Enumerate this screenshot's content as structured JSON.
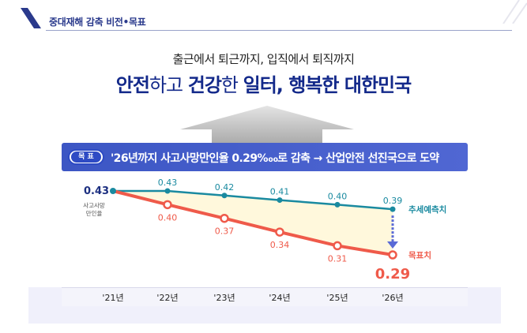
{
  "header": {
    "title": "중대재해 감축 비전•목표"
  },
  "subtitle": "출근에서 퇴근까지, 입직에서 퇴직까지",
  "title_parts": [
    {
      "text": "안전",
      "bold": true
    },
    {
      "text": "하고 ",
      "bold": false
    },
    {
      "text": "건강",
      "bold": true
    },
    {
      "text": "한 ",
      "bold": false
    },
    {
      "text": "일터, 행복한 대한민국",
      "bold": true
    }
  ],
  "banner": {
    "badge": "목 표",
    "text": "'26년까지 사고사망만인율 0.29‱로 감축 → 산업안전 선진국으로 도약"
  },
  "chart_data": {
    "type": "line",
    "categories": [
      "'21년",
      "'22년",
      "'23년",
      "'24년",
      "'25년",
      "'26년"
    ],
    "ylabel": "사고사망\n만인율",
    "start_label": "0.43",
    "target_end_label": "0.29",
    "series": [
      {
        "name": "추세예측치",
        "values": [
          0.43,
          0.43,
          0.42,
          0.41,
          0.4,
          0.39
        ],
        "color": "#1a8aa0"
      },
      {
        "name": "목표치",
        "values": [
          0.43,
          0.4,
          0.37,
          0.34,
          0.31,
          0.29
        ],
        "color": "#ef5a4a"
      }
    ],
    "colors": {
      "gap_fill": "#fff8dc",
      "arrow": "#5a6ad6",
      "axis_strip": "#f4f4fb"
    }
  }
}
